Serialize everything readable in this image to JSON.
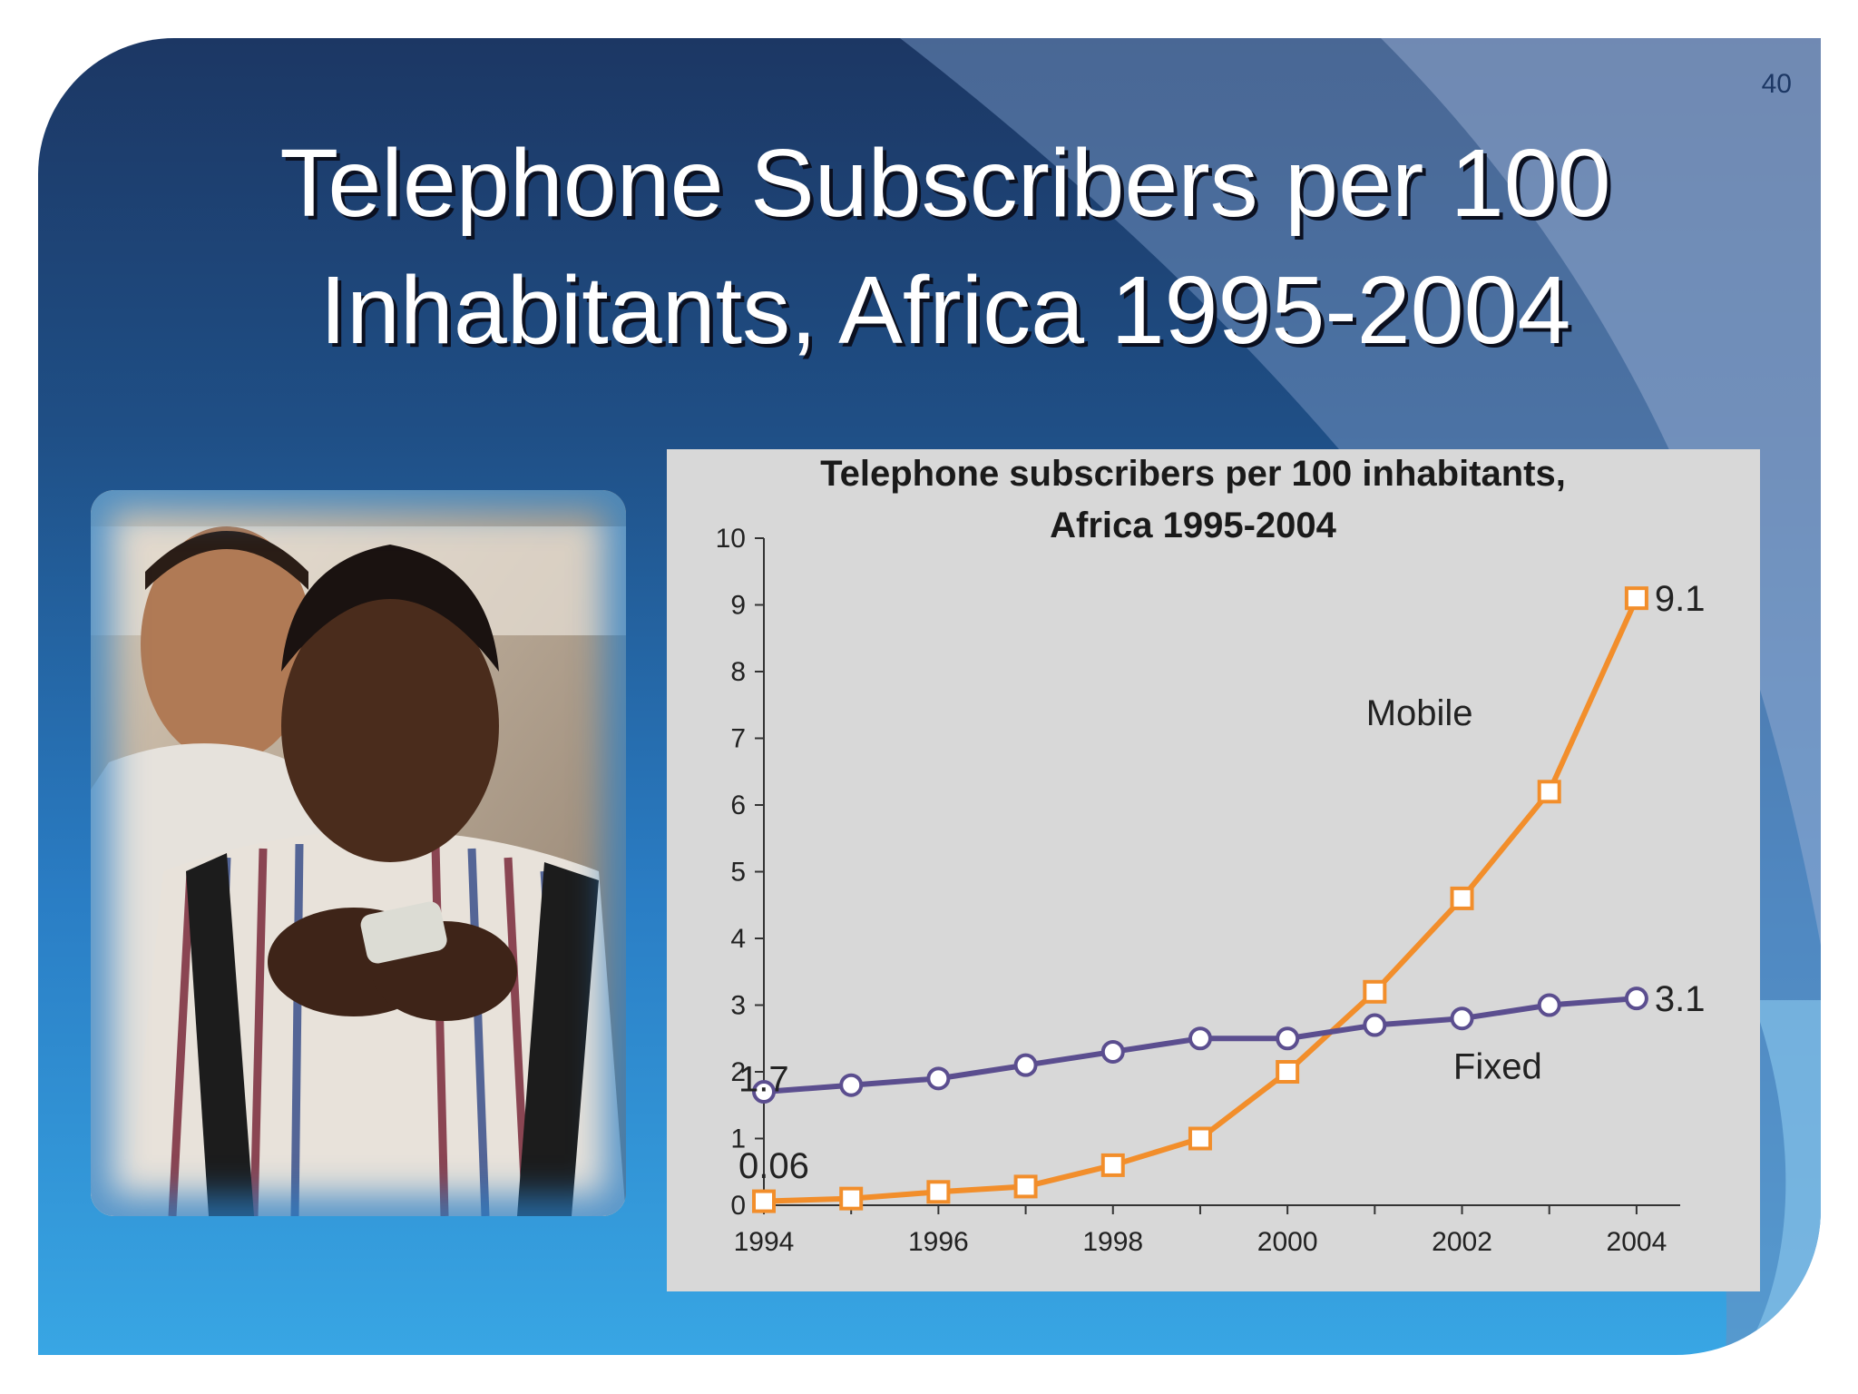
{
  "slide": {
    "page_number": "40",
    "title_lines": [
      "Telephone Subscribers per 100",
      "Inhabitants, Africa 1995-2004"
    ],
    "colors": {
      "accent_dark": "#1c3764",
      "accent_light": "#38a6e4",
      "mobile": "#f28e2b",
      "fixed": "#5b4e8f"
    }
  },
  "photo": {
    "icon": "photo-icon",
    "description_name": "two young men looking at a mobile phone"
  },
  "chart_data": {
    "type": "line",
    "title_lines": [
      "Telephone subscribers per 100 inhabitants,",
      "Africa 1995-2004"
    ],
    "x": [
      1994,
      1995,
      1996,
      1997,
      1998,
      1999,
      2000,
      2001,
      2002,
      2003,
      2004
    ],
    "x_ticks": [
      1994,
      1996,
      1998,
      2000,
      2002,
      2004
    ],
    "x_tick_labels": [
      "1994",
      "1996",
      "1998",
      "2000",
      "2002",
      "2004"
    ],
    "y_ticks": [
      0,
      1,
      2,
      3,
      4,
      5,
      6,
      7,
      8,
      9,
      10
    ],
    "y_tick_labels": [
      "0",
      "1",
      "2",
      "3",
      "4",
      "5",
      "6",
      "7",
      "8",
      "9",
      "10"
    ],
    "xlim": [
      1994,
      2004.5
    ],
    "ylim": [
      0,
      10
    ],
    "xlabel": "",
    "ylabel": "",
    "grid": false,
    "legend": "none",
    "series": [
      {
        "name": "Mobile",
        "marker": "square",
        "color": "#f28e2b",
        "values": [
          0.06,
          0.1,
          0.2,
          0.28,
          0.6,
          1.0,
          2.0,
          3.2,
          4.6,
          6.2,
          9.1
        ],
        "label_position": {
          "x": 2000.9,
          "y": 7.2
        }
      },
      {
        "name": "Fixed",
        "marker": "circle",
        "color": "#5b4e8f",
        "values": [
          1.7,
          1.8,
          1.9,
          2.1,
          2.3,
          2.5,
          2.5,
          2.7,
          2.8,
          3.0,
          3.1
        ],
        "label_position": {
          "x": 2001.9,
          "y": 1.9
        }
      }
    ],
    "annotations": [
      {
        "text": "1.7",
        "x": 1994,
        "y": 1.9
      },
      {
        "text": "0.06",
        "x": 1994,
        "y": 0.6
      },
      {
        "text": "9.1",
        "x": 2004,
        "y": 9.1
      },
      {
        "text": "3.1",
        "x": 2004,
        "y": 3.1
      }
    ]
  }
}
